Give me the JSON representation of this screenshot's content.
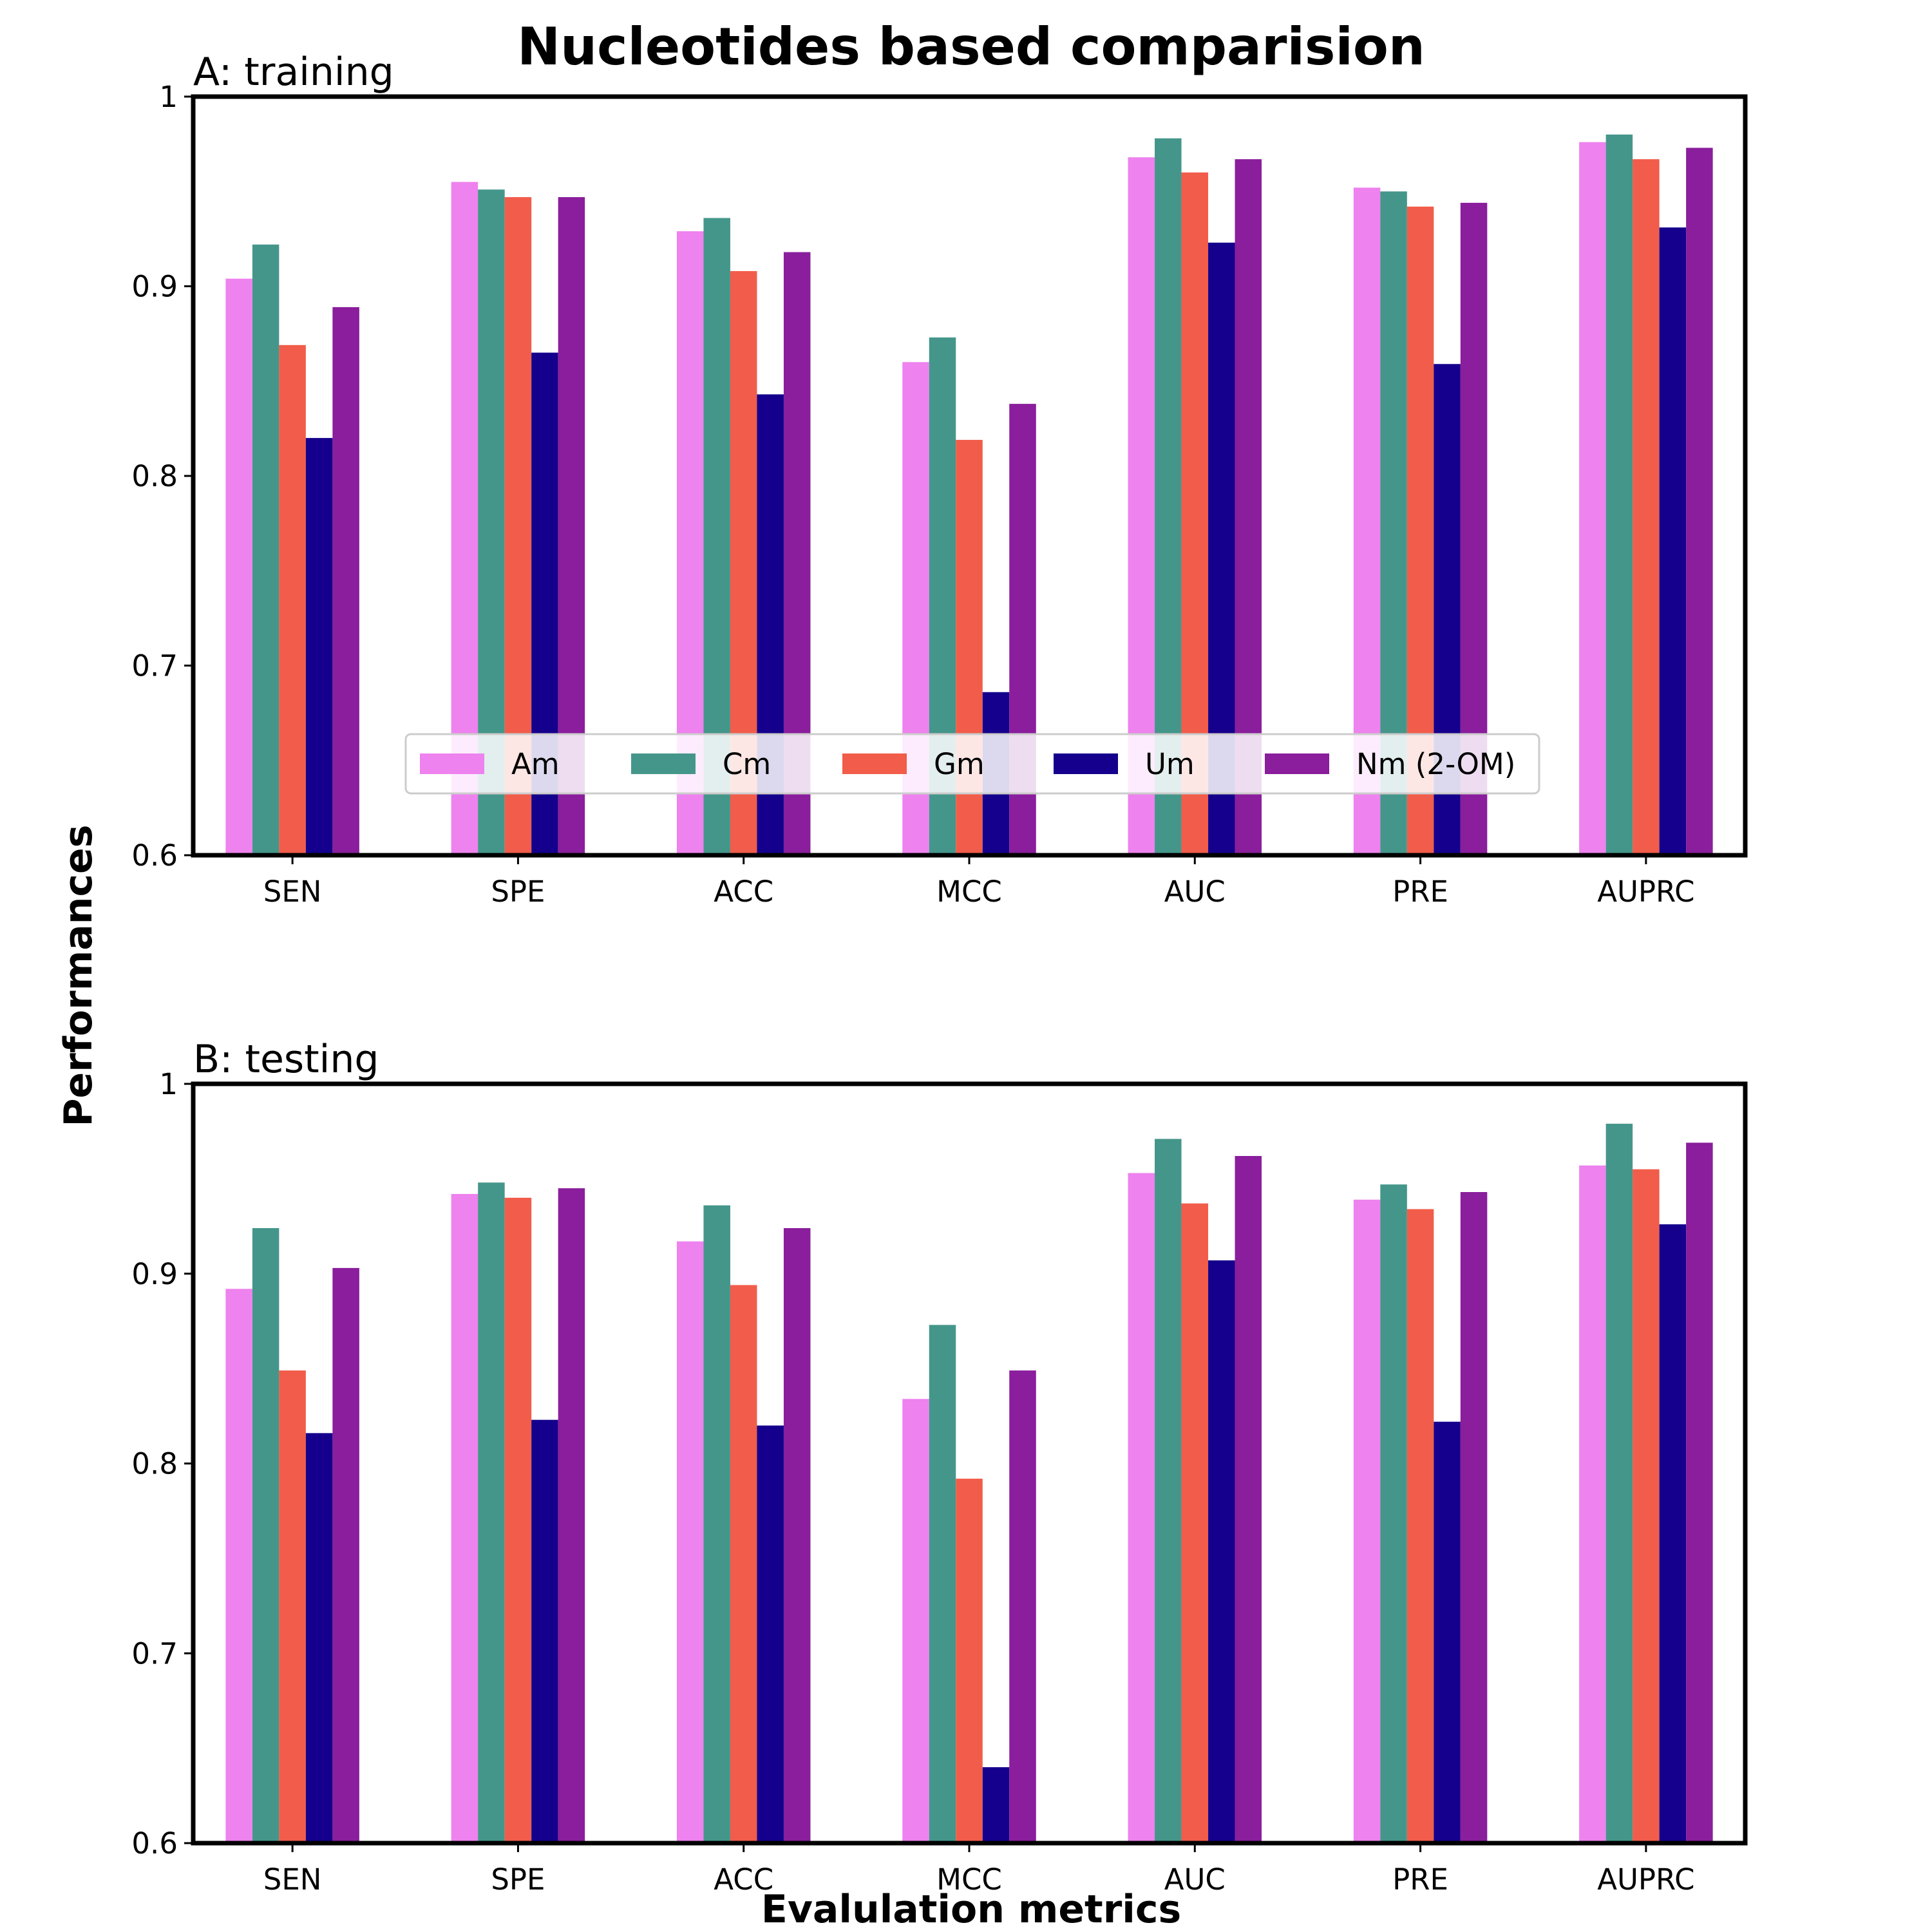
{
  "figure": {
    "title": "Nucleotides based comparision",
    "xlabel": "Evalulation metrics",
    "ylabel": "Performances"
  },
  "legend": {
    "placement": "lower-center (top panel)",
    "entries": [
      {
        "name": "Am",
        "color": "#ee82ee"
      },
      {
        "name": "Cm",
        "color": "#45968a"
      },
      {
        "name": "Gm",
        "color": "#f25c4a"
      },
      {
        "name": "Um",
        "color": "#14008c"
      },
      {
        "name": "Nm (2-OM)",
        "color": "#8a1e9c"
      }
    ]
  },
  "chart_data": [
    {
      "type": "bar",
      "title": "A: training",
      "categories": [
        "SEN",
        "SPE",
        "ACC",
        "MCC",
        "AUC",
        "PRE",
        "AUPRC"
      ],
      "ylim": [
        0.6,
        1.0
      ],
      "yticks": [
        0.6,
        0.7,
        0.8,
        0.9,
        1.0
      ],
      "ytick_labels": [
        "0.6",
        "0.7",
        "0.8",
        "0.9",
        "1"
      ],
      "grid": false,
      "series": [
        {
          "name": "Am",
          "color": "#ee82ee",
          "values": [
            0.904,
            0.955,
            0.929,
            0.86,
            0.968,
            0.952,
            0.976
          ]
        },
        {
          "name": "Cm",
          "color": "#45968a",
          "values": [
            0.922,
            0.951,
            0.936,
            0.873,
            0.978,
            0.95,
            0.98
          ]
        },
        {
          "name": "Gm",
          "color": "#f25c4a",
          "values": [
            0.869,
            0.947,
            0.908,
            0.819,
            0.96,
            0.942,
            0.967
          ]
        },
        {
          "name": "Um",
          "color": "#14008c",
          "values": [
            0.82,
            0.865,
            0.843,
            0.686,
            0.923,
            0.859,
            0.931
          ]
        },
        {
          "name": "Nm (2-OM)",
          "color": "#8a1e9c",
          "values": [
            0.889,
            0.947,
            0.918,
            0.838,
            0.967,
            0.944,
            0.973
          ]
        }
      ]
    },
    {
      "type": "bar",
      "title": "B: testing",
      "categories": [
        "SEN",
        "SPE",
        "ACC",
        "MCC",
        "AUC",
        "PRE",
        "AUPRC"
      ],
      "ylim": [
        0.6,
        1.0
      ],
      "yticks": [
        0.6,
        0.7,
        0.8,
        0.9,
        1.0
      ],
      "ytick_labels": [
        "0.6",
        "0.7",
        "0.8",
        "0.9",
        "1"
      ],
      "grid": false,
      "series": [
        {
          "name": "Am",
          "color": "#ee82ee",
          "values": [
            0.892,
            0.942,
            0.917,
            0.834,
            0.953,
            0.939,
            0.957
          ]
        },
        {
          "name": "Cm",
          "color": "#45968a",
          "values": [
            0.924,
            0.948,
            0.936,
            0.873,
            0.971,
            0.947,
            0.979
          ]
        },
        {
          "name": "Gm",
          "color": "#f25c4a",
          "values": [
            0.849,
            0.94,
            0.894,
            0.792,
            0.937,
            0.934,
            0.955
          ]
        },
        {
          "name": "Um",
          "color": "#14008c",
          "values": [
            0.816,
            0.823,
            0.82,
            0.64,
            0.907,
            0.822,
            0.926
          ]
        },
        {
          "name": "Nm (2-OM)",
          "color": "#8a1e9c",
          "values": [
            0.903,
            0.945,
            0.924,
            0.849,
            0.962,
            0.943,
            0.969
          ]
        }
      ]
    }
  ]
}
